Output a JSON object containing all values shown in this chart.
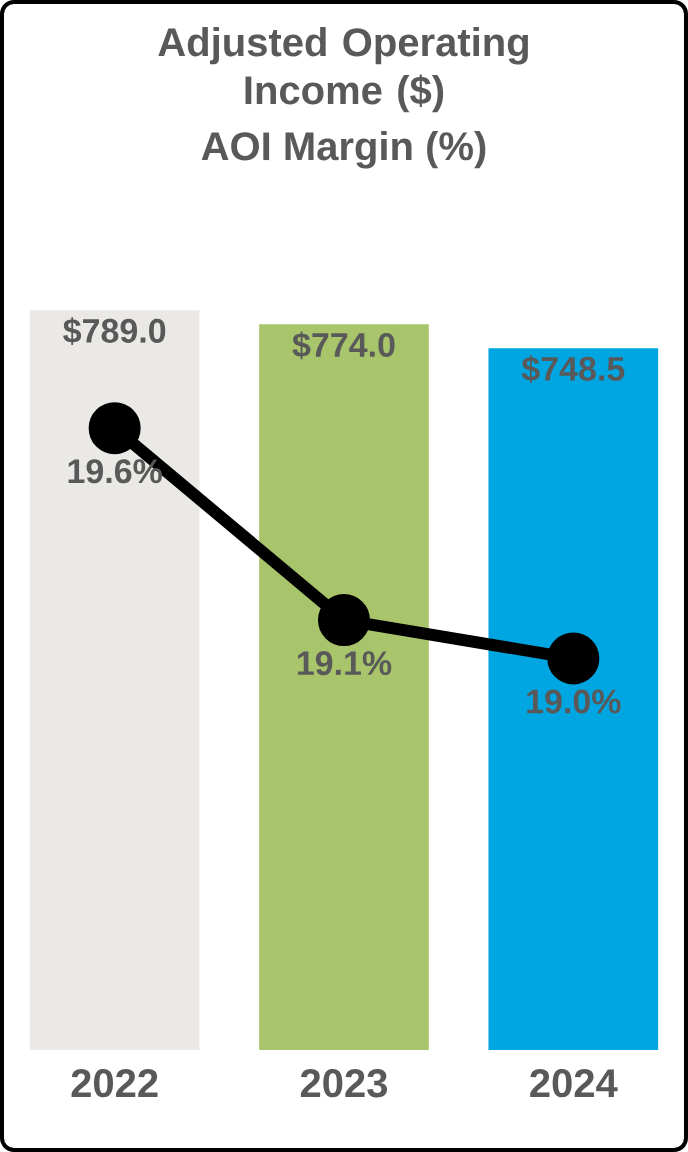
{
  "chart_data": {
    "type": "bar",
    "title": "Adjusted Operating Income ($)",
    "subtitle": "AOI Margin (%)",
    "categories": [
      "2022",
      "2023",
      "2024"
    ],
    "series": [
      {
        "colors": [
          "#ebe9e6",
          "#a9c56b",
          "#00a6e2"
        ],
        "values": [
          789.0,
          774.0,
          748.5
        ],
        "value_labels": [
          "$789.0",
          "$774.0",
          "$748.5"
        ]
      },
      {
        "type": "line",
        "axis": "y2",
        "color": "#000000",
        "marker": "circle",
        "values": [
          19.6,
          19.1,
          19.0
        ],
        "value_labels": [
          "19.6%",
          "19.1%",
          "19.0%"
        ]
      }
    ]
  }
}
